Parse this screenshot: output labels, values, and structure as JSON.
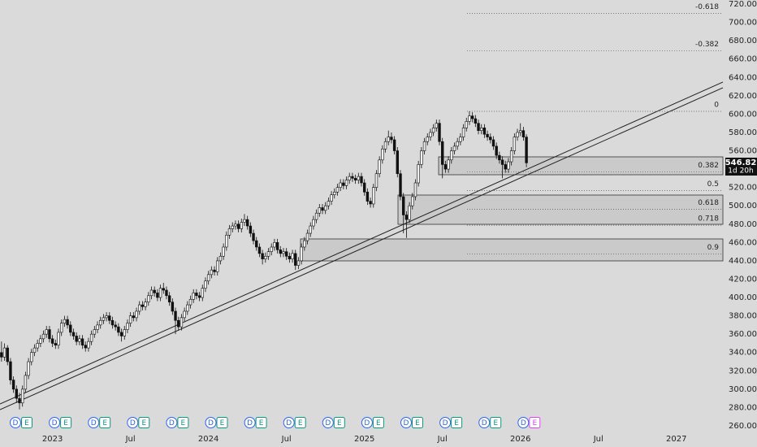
{
  "chart_data": {
    "type": "candlestick",
    "categories": [
      null,
      null,
      null,
      null,
      null,
      null,
      null,
      null,
      null,
      null,
      null,
      null,
      null,
      null,
      null,
      null,
      null,
      "2023",
      null,
      null,
      null,
      null,
      null,
      null,
      null,
      null,
      null,
      null,
      null,
      null,
      null,
      null,
      null,
      null,
      null,
      null,
      null,
      null,
      null,
      null,
      null,
      null,
      null,
      "Jul",
      null,
      null,
      null,
      null,
      null,
      null,
      null,
      null,
      null,
      null,
      null,
      null,
      null,
      null,
      null,
      null,
      null,
      null,
      null,
      null,
      null,
      null,
      null,
      null,
      null,
      "2024",
      null,
      null,
      null,
      null,
      null,
      null,
      null,
      null,
      null,
      null,
      null,
      null,
      null,
      null,
      null,
      null,
      null,
      null,
      null,
      null,
      null,
      null,
      null,
      null,
      null,
      "Jul",
      null,
      null,
      null,
      null,
      null,
      null,
      null,
      null,
      null,
      null,
      null,
      null,
      null,
      null,
      null,
      null,
      null,
      null,
      null,
      null,
      null,
      null,
      null,
      null,
      null,
      "2025",
      null,
      null,
      null,
      null,
      null,
      null,
      null,
      null,
      null,
      null,
      null,
      null,
      null,
      null,
      null,
      null,
      null,
      null,
      null,
      null,
      null,
      null,
      null,
      null,
      null,
      "Jul",
      null,
      null,
      null,
      null,
      null,
      null,
      null,
      null,
      null,
      null,
      null,
      null,
      null,
      null,
      null,
      null,
      null,
      null,
      null,
      null,
      null,
      null,
      null,
      null,
      null,
      "2026",
      null,
      null,
      null,
      null,
      null,
      null,
      null,
      null,
      null,
      null,
      null,
      null,
      null,
      null,
      null,
      null,
      null,
      null,
      null,
      null,
      null,
      null,
      null,
      null,
      null,
      "Jul",
      null,
      null,
      null,
      null,
      null,
      null,
      null,
      null,
      null,
      null,
      null,
      null,
      null,
      null,
      null,
      null,
      null,
      null,
      null,
      null,
      null,
      null,
      null,
      null,
      null,
      "2027",
      null,
      null,
      null,
      null,
      null,
      null,
      null,
      null,
      null,
      null,
      null,
      null,
      null,
      null,
      null
    ],
    "ohlc": [
      [
        340,
        352,
        330,
        335
      ],
      [
        335,
        350,
        331,
        345
      ],
      [
        345,
        348,
        326,
        330
      ],
      [
        330,
        334,
        305,
        310
      ],
      [
        310,
        314,
        296,
        300
      ],
      [
        300,
        304,
        285,
        290
      ],
      [
        290,
        296,
        278,
        285
      ],
      [
        285,
        304,
        281,
        300
      ],
      [
        300,
        319,
        296,
        315
      ],
      [
        315,
        334,
        311,
        330
      ],
      [
        330,
        344,
        326,
        340
      ],
      [
        340,
        349,
        336,
        345
      ],
      [
        345,
        354,
        341,
        350
      ],
      [
        350,
        359,
        346,
        355
      ],
      [
        355,
        364,
        351,
        360
      ],
      [
        360,
        369,
        356,
        365
      ],
      [
        365,
        369,
        351,
        355
      ],
      [
        355,
        359,
        346,
        350
      ],
      [
        350,
        354,
        344,
        348
      ],
      [
        348,
        366,
        344,
        362
      ],
      [
        362,
        376,
        358,
        372
      ],
      [
        372,
        380,
        368,
        376
      ],
      [
        376,
        380,
        366,
        370
      ],
      [
        370,
        374,
        358,
        362
      ],
      [
        362,
        366,
        354,
        358
      ],
      [
        358,
        362,
        348,
        352
      ],
      [
        352,
        359,
        348,
        355
      ],
      [
        355,
        359,
        344,
        348
      ],
      [
        348,
        352,
        341,
        345
      ],
      [
        345,
        356,
        341,
        352
      ],
      [
        352,
        364,
        348,
        360
      ],
      [
        360,
        369,
        356,
        365
      ],
      [
        365,
        374,
        361,
        370
      ],
      [
        370,
        379,
        366,
        375
      ],
      [
        375,
        382,
        371,
        378
      ],
      [
        378,
        384,
        374,
        380
      ],
      [
        380,
        384,
        371,
        375
      ],
      [
        375,
        379,
        366,
        370
      ],
      [
        370,
        374,
        364,
        368
      ],
      [
        368,
        372,
        358,
        362
      ],
      [
        362,
        366,
        352,
        358
      ],
      [
        358,
        369,
        354,
        365
      ],
      [
        365,
        376,
        361,
        372
      ],
      [
        372,
        384,
        368,
        380
      ],
      [
        380,
        384,
        374,
        378
      ],
      [
        378,
        389,
        374,
        385
      ],
      [
        385,
        396,
        381,
        392
      ],
      [
        392,
        396,
        386,
        390
      ],
      [
        390,
        399,
        386,
        395
      ],
      [
        395,
        406,
        391,
        402
      ],
      [
        402,
        412,
        398,
        408
      ],
      [
        408,
        412,
        401,
        405
      ],
      [
        405,
        409,
        396,
        400
      ],
      [
        400,
        414,
        396,
        410
      ],
      [
        410,
        416,
        404,
        408
      ],
      [
        408,
        412,
        398,
        402
      ],
      [
        402,
        406,
        391,
        395
      ],
      [
        395,
        399,
        381,
        385
      ],
      [
        385,
        389,
        360,
        375
      ],
      [
        375,
        379,
        364,
        368
      ],
      [
        368,
        382,
        364,
        378
      ],
      [
        378,
        389,
        374,
        385
      ],
      [
        385,
        396,
        381,
        392
      ],
      [
        392,
        402,
        388,
        398
      ],
      [
        398,
        409,
        394,
        405
      ],
      [
        405,
        409,
        398,
        402
      ],
      [
        402,
        406,
        396,
        400
      ],
      [
        400,
        414,
        396,
        410
      ],
      [
        410,
        422,
        406,
        418
      ],
      [
        418,
        429,
        414,
        425
      ],
      [
        425,
        434,
        421,
        430
      ],
      [
        430,
        434,
        424,
        428
      ],
      [
        428,
        444,
        424,
        440
      ],
      [
        440,
        449,
        436,
        445
      ],
      [
        445,
        459,
        441,
        455
      ],
      [
        455,
        472,
        451,
        468
      ],
      [
        468,
        479,
        464,
        475
      ],
      [
        475,
        482,
        471,
        478
      ],
      [
        478,
        484,
        474,
        480
      ],
      [
        480,
        484,
        471,
        475
      ],
      [
        475,
        486,
        471,
        482
      ],
      [
        482,
        491,
        478,
        485
      ],
      [
        485,
        489,
        474,
        478
      ],
      [
        478,
        482,
        466,
        470
      ],
      [
        470,
        474,
        458,
        462
      ],
      [
        462,
        466,
        451,
        455
      ],
      [
        455,
        459,
        444,
        448
      ],
      [
        448,
        452,
        436,
        442
      ],
      [
        442,
        449,
        438,
        445
      ],
      [
        445,
        454,
        441,
        450
      ],
      [
        450,
        459,
        446,
        455
      ],
      [
        455,
        464,
        451,
        460
      ],
      [
        460,
        464,
        448,
        452
      ],
      [
        452,
        456,
        444,
        448
      ],
      [
        448,
        454,
        444,
        450
      ],
      [
        450,
        454,
        441,
        445
      ],
      [
        445,
        449,
        438,
        442
      ],
      [
        442,
        452,
        438,
        448
      ],
      [
        448,
        452,
        430,
        435
      ],
      [
        435,
        444,
        431,
        440
      ],
      [
        440,
        459,
        436,
        455
      ],
      [
        455,
        466,
        451,
        462
      ],
      [
        462,
        474,
        458,
        470
      ],
      [
        470,
        482,
        466,
        478
      ],
      [
        478,
        489,
        474,
        485
      ],
      [
        485,
        496,
        481,
        492
      ],
      [
        492,
        502,
        488,
        498
      ],
      [
        498,
        502,
        491,
        495
      ],
      [
        495,
        504,
        491,
        500
      ],
      [
        500,
        509,
        496,
        505
      ],
      [
        505,
        516,
        501,
        512
      ],
      [
        512,
        519,
        508,
        515
      ],
      [
        515,
        524,
        511,
        520
      ],
      [
        520,
        529,
        516,
        525
      ],
      [
        525,
        529,
        518,
        522
      ],
      [
        522,
        532,
        518,
        528
      ],
      [
        528,
        536,
        524,
        532
      ],
      [
        532,
        536,
        526,
        530
      ],
      [
        530,
        534,
        524,
        528
      ],
      [
        528,
        536,
        524,
        532
      ],
      [
        532,
        536,
        521,
        525
      ],
      [
        525,
        529,
        511,
        515
      ],
      [
        515,
        519,
        501,
        505
      ],
      [
        505,
        509,
        498,
        502
      ],
      [
        502,
        524,
        498,
        520
      ],
      [
        520,
        539,
        516,
        535
      ],
      [
        535,
        554,
        531,
        550
      ],
      [
        550,
        566,
        546,
        562
      ],
      [
        562,
        574,
        558,
        570
      ],
      [
        570,
        582,
        566,
        575
      ],
      [
        575,
        580,
        568,
        572
      ],
      [
        572,
        576,
        556,
        560
      ],
      [
        560,
        564,
        531,
        535
      ],
      [
        535,
        539,
        506,
        510
      ],
      [
        510,
        514,
        470,
        490
      ],
      [
        490,
        494,
        465,
        485
      ],
      [
        485,
        504,
        481,
        500
      ],
      [
        500,
        514,
        496,
        510
      ],
      [
        510,
        529,
        506,
        525
      ],
      [
        525,
        549,
        521,
        545
      ],
      [
        545,
        564,
        541,
        560
      ],
      [
        560,
        574,
        556,
        570
      ],
      [
        570,
        579,
        566,
        575
      ],
      [
        575,
        584,
        571,
        580
      ],
      [
        580,
        589,
        576,
        585
      ],
      [
        585,
        594,
        581,
        590
      ],
      [
        590,
        594,
        566,
        570
      ],
      [
        570,
        574,
        530,
        545
      ],
      [
        545,
        549,
        536,
        540
      ],
      [
        540,
        554,
        536,
        550
      ],
      [
        550,
        564,
        546,
        560
      ],
      [
        560,
        569,
        556,
        565
      ],
      [
        565,
        574,
        561,
        570
      ],
      [
        570,
        579,
        566,
        575
      ],
      [
        575,
        589,
        571,
        585
      ],
      [
        585,
        596,
        581,
        592
      ],
      [
        592,
        603,
        588,
        598
      ],
      [
        598,
        602,
        591,
        595
      ],
      [
        595,
        599,
        586,
        590
      ],
      [
        590,
        594,
        578,
        582
      ],
      [
        582,
        589,
        578,
        585
      ],
      [
        585,
        589,
        574,
        578
      ],
      [
        578,
        582,
        571,
        575
      ],
      [
        575,
        579,
        568,
        572
      ],
      [
        572,
        576,
        561,
        565
      ],
      [
        565,
        569,
        551,
        555
      ],
      [
        555,
        559,
        546,
        550
      ],
      [
        550,
        554,
        530,
        545
      ],
      [
        545,
        549,
        536,
        540
      ],
      [
        540,
        552,
        536,
        548
      ],
      [
        548,
        564,
        544,
        560
      ],
      [
        560,
        579,
        556,
        575
      ],
      [
        575,
        584,
        571,
        580
      ],
      [
        580,
        590,
        576,
        582
      ],
      [
        582,
        586,
        571,
        575
      ],
      [
        575,
        578,
        542,
        546.82
      ],
      null,
      null,
      null,
      null,
      null,
      null,
      null,
      null,
      null,
      null,
      null,
      null,
      null,
      null,
      null,
      null,
      null,
      null,
      null,
      null,
      null,
      null,
      null,
      null,
      null,
      null,
      null,
      null,
      null,
      null,
      null,
      null,
      null,
      null,
      null,
      null,
      null,
      null,
      null,
      null,
      null,
      null,
      null,
      null,
      null,
      null,
      null,
      null,
      null,
      null,
      null,
      null,
      null,
      null,
      null,
      null,
      null,
      null,
      null,
      null,
      null,
      null,
      null,
      null,
      null
    ],
    "ylim": [
      260,
      720
    ],
    "yticks": [
      {
        "value": 260,
        "label": "260.00"
      },
      {
        "value": 280,
        "label": "280.00"
      },
      {
        "value": 300,
        "label": "300.00"
      },
      {
        "value": 320,
        "label": "320.00"
      },
      {
        "value": 340,
        "label": "340.00"
      },
      {
        "value": 360,
        "label": "360.00"
      },
      {
        "value": 380,
        "label": "380.00"
      },
      {
        "value": 400,
        "label": "400.00"
      },
      {
        "value": 420,
        "label": "420.00"
      },
      {
        "value": 440,
        "label": "440.00"
      },
      {
        "value": 460,
        "label": "460.00"
      },
      {
        "value": 480,
        "label": "480.00"
      },
      {
        "value": 500,
        "label": "500.00"
      },
      {
        "value": 520,
        "label": "520.00"
      },
      {
        "value": 540,
        "label": "540.00"
      },
      {
        "value": 560,
        "label": "560.00"
      },
      {
        "value": 580,
        "label": "580.00"
      },
      {
        "value": 600,
        "label": "600.00"
      },
      {
        "value": 620,
        "label": "620.00"
      },
      {
        "value": 640,
        "label": "640.00"
      },
      {
        "value": 660,
        "label": "660.00"
      },
      {
        "value": 680,
        "label": "680.00"
      },
      {
        "value": 700,
        "label": "700.00"
      },
      {
        "value": 720,
        "label": "720.00"
      }
    ],
    "countdown": "1d 20h",
    "fib_levels": [
      -0.618,
      -0.382,
      0,
      0.382,
      0.5,
      0.618,
      0.718,
      0.9
    ],
    "fib_range": [
      603,
      430
    ],
    "events": [
      [
        "D",
        "E"
      ],
      [
        "D",
        "E"
      ],
      [
        "D",
        "E"
      ],
      [
        "D",
        "E"
      ],
      [
        "D",
        "E"
      ],
      [
        "D",
        "E"
      ],
      [
        "D",
        "E"
      ],
      [
        "D",
        "E"
      ],
      [
        "D",
        "E"
      ],
      [
        "D",
        "E"
      ],
      [
        "D",
        "E"
      ],
      [
        "D",
        "E"
      ],
      [
        "D",
        "E"
      ],
      [
        "D",
        "E"
      ]
    ],
    "up_color": "#f4f4f4",
    "down_color": "#111111"
  }
}
